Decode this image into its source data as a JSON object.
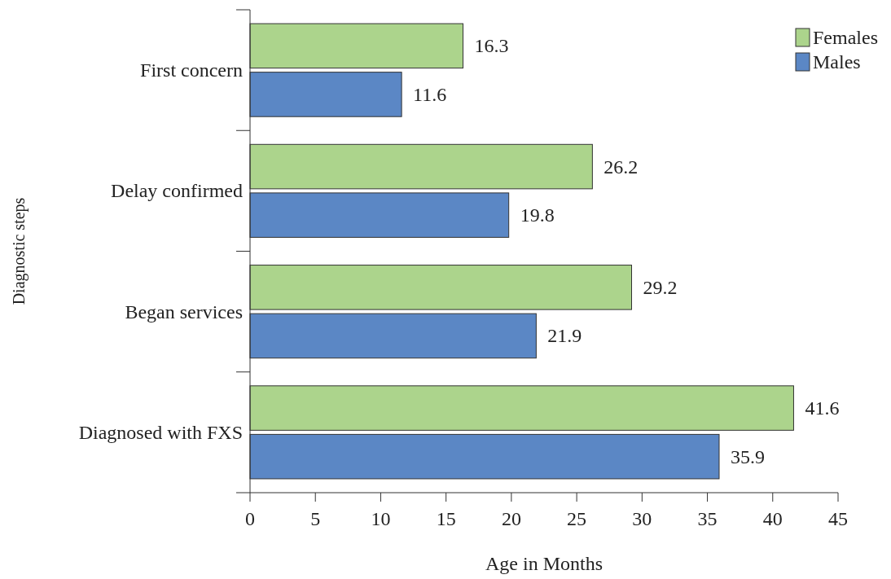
{
  "chart_data": {
    "type": "bar",
    "orientation": "horizontal",
    "xlabel": "Age in Months",
    "ylabel": "Diagnostic steps",
    "categories": [
      "First concern",
      "Delay confirmed",
      "Began services",
      "Diagnosed with FXS"
    ],
    "series": [
      {
        "name": "Females",
        "color": "#acd48c",
        "values": [
          16.3,
          26.2,
          29.2,
          41.6
        ]
      },
      {
        "name": "Males",
        "color": "#5b87c5",
        "values": [
          11.6,
          19.8,
          21.9,
          35.9
        ]
      }
    ],
    "xlim": [
      0,
      45
    ],
    "xticks": [
      0,
      5,
      10,
      15,
      20,
      25,
      30,
      35,
      40,
      45
    ],
    "data_labels": true,
    "legend": "top right",
    "grid": false
  }
}
